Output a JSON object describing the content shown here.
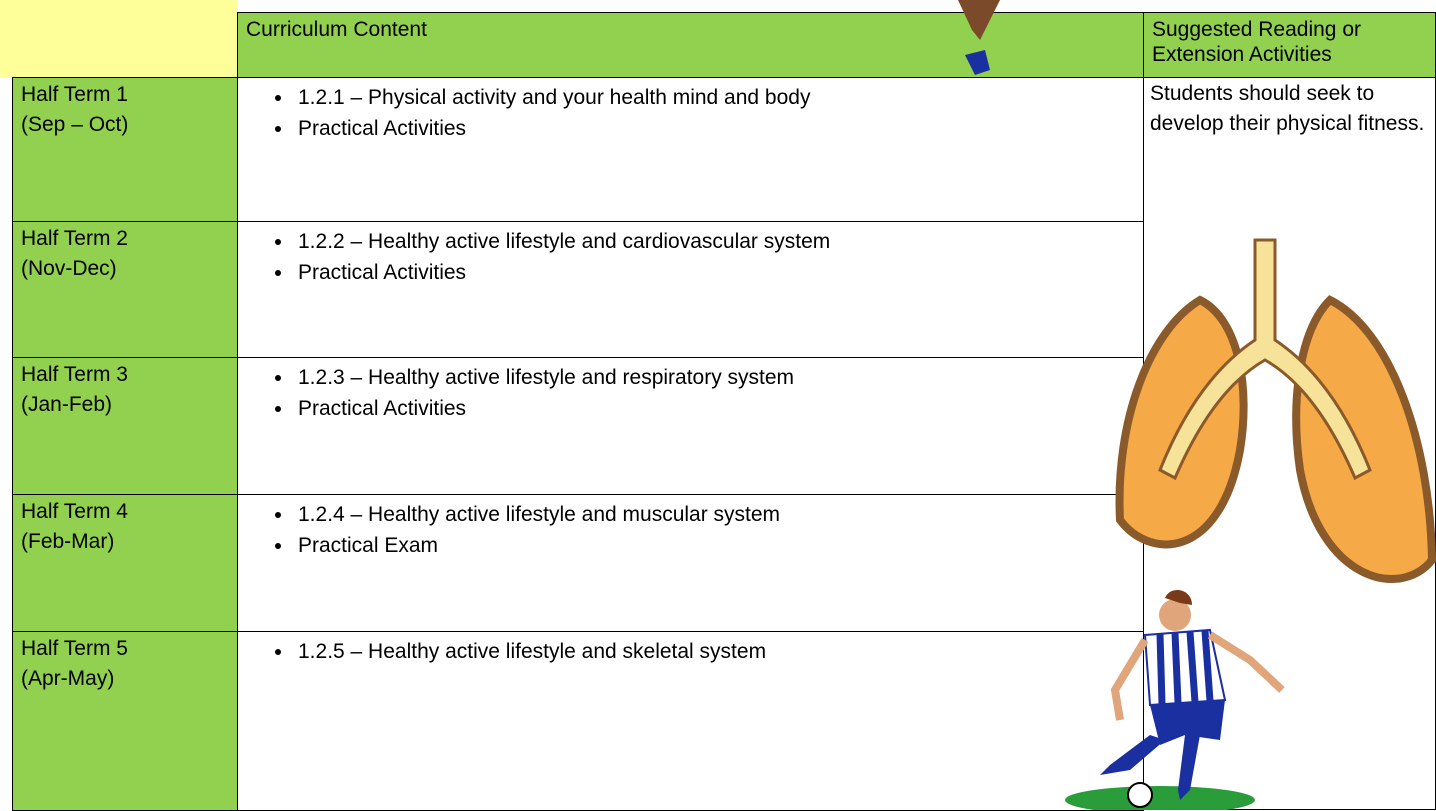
{
  "table": {
    "header": [
      "Curriculum Content",
      "Suggested Reading or Extension Activities"
    ],
    "rows": [
      {
        "term": "Half Term 1",
        "dates": "(Sep – Oct)",
        "items": [
          "1.2.1 – Physical activity and your health mind and body",
          "Practical Activities"
        ]
      },
      {
        "term": "Half Term 2",
        "dates": "(Nov-Dec)",
        "items": [
          "1.2.2 – Healthy active lifestyle and cardiovascular system",
          "Practical Activities"
        ]
      },
      {
        "term": "Half Term 3",
        "dates": "(Jan-Feb)",
        "items": [
          "1.2.3 – Healthy active lifestyle and respiratory system",
          "Practical Activities"
        ]
      },
      {
        "term": "Half Term 4",
        "dates": "(Feb-Mar)",
        "items": [
          "1.2.4 – Healthy active lifestyle and muscular system",
          "Practical Exam"
        ]
      },
      {
        "term": "Half Term 5",
        "dates": "(Apr-May)",
        "items": [
          "1.2.5 – Healthy active lifestyle and skeletal system"
        ]
      }
    ],
    "extension": "Students should seek to develop their physical fitness."
  }
}
